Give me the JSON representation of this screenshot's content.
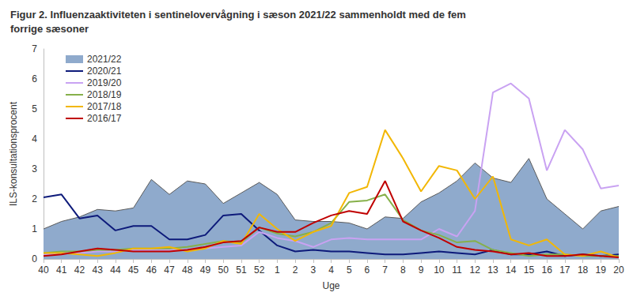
{
  "chart_data": {
    "type": "line",
    "title": "Figur 2. Influenzaaktiviteten i sentinelovervågning i sæson 2021/22 sammenholdt med de fem forrige sæsoner",
    "x_label": "Uge",
    "y_label": "ILS-konsultationsprocent",
    "categories": [
      "40",
      "41",
      "42",
      "43",
      "44",
      "45",
      "46",
      "47",
      "48",
      "49",
      "50",
      "51",
      "52",
      "1",
      "2",
      "3",
      "4",
      "5",
      "6",
      "7",
      "8",
      "9",
      "10",
      "11",
      "12",
      "13",
      "14",
      "15",
      "16",
      "17",
      "18",
      "19",
      "20"
    ],
    "ylim": [
      0,
      7
    ],
    "yticks": [
      0,
      1,
      2,
      3,
      4,
      5,
      6,
      7
    ],
    "grid": false,
    "legend": "top-left",
    "series": [
      {
        "name": "2021/22",
        "type": "area",
        "color": "#8faacc",
        "values": [
          1.0,
          1.25,
          1.4,
          1.65,
          1.6,
          1.7,
          2.65,
          2.15,
          2.6,
          2.5,
          1.85,
          2.2,
          2.55,
          2.15,
          1.3,
          1.25,
          1.25,
          1.2,
          1.0,
          1.4,
          1.35,
          1.9,
          2.2,
          2.6,
          3.2,
          2.7,
          2.55,
          3.35,
          2.0,
          1.5,
          1.0,
          1.6,
          1.75
        ]
      },
      {
        "name": "2020/21",
        "type": "line",
        "color": "#0d1a7a",
        "values": [
          2.05,
          2.15,
          1.35,
          1.45,
          0.95,
          1.1,
          1.1,
          0.65,
          0.65,
          0.8,
          1.45,
          1.5,
          0.95,
          0.45,
          0.25,
          0.3,
          0.25,
          0.25,
          0.2,
          0.15,
          0.15,
          0.2,
          0.25,
          0.2,
          0.15,
          0.3,
          0.15,
          0.15,
          0.25,
          0.1,
          0.15,
          0.1,
          0.15
        ]
      },
      {
        "name": "2019/20",
        "type": "line",
        "color": "#c9a2f2",
        "values": [
          0.15,
          0.2,
          0.2,
          0.25,
          0.25,
          0.3,
          0.3,
          0.3,
          0.3,
          0.35,
          0.4,
          0.45,
          0.9,
          0.7,
          0.6,
          0.4,
          0.65,
          0.7,
          0.65,
          0.65,
          0.65,
          0.65,
          1.0,
          0.75,
          1.6,
          5.55,
          5.85,
          5.35,
          2.95,
          4.3,
          3.65,
          2.35,
          2.45
        ]
      },
      {
        "name": "2018/19",
        "type": "line",
        "color": "#86b04a",
        "values": [
          0.2,
          0.25,
          0.25,
          0.3,
          0.3,
          0.35,
          0.35,
          0.35,
          0.4,
          0.5,
          0.6,
          0.55,
          1.05,
          0.85,
          0.75,
          0.9,
          1.2,
          1.9,
          1.95,
          2.15,
          1.3,
          0.95,
          0.8,
          0.55,
          0.6,
          0.3,
          0.2,
          0.1,
          0.15,
          0.15,
          0.1,
          0.1,
          0.1
        ]
      },
      {
        "name": "2017/18",
        "type": "line",
        "color": "#f2b705",
        "values": [
          0.2,
          0.2,
          0.15,
          0.1,
          0.2,
          0.35,
          0.35,
          0.4,
          0.25,
          0.35,
          0.6,
          0.5,
          1.5,
          1.0,
          0.6,
          0.9,
          1.1,
          2.2,
          2.4,
          4.3,
          3.35,
          2.25,
          3.1,
          2.95,
          2.0,
          2.75,
          0.65,
          0.45,
          0.65,
          0.15,
          0.1,
          0.25,
          0.05
        ]
      },
      {
        "name": "2016/17",
        "type": "line",
        "color": "#c00000",
        "values": [
          0.1,
          0.15,
          0.25,
          0.35,
          0.3,
          0.25,
          0.25,
          0.25,
          0.3,
          0.4,
          0.55,
          0.6,
          1.05,
          0.9,
          0.9,
          1.2,
          1.45,
          1.6,
          1.5,
          2.6,
          1.25,
          0.95,
          0.7,
          0.4,
          0.3,
          0.25,
          0.15,
          0.2,
          0.1,
          0.1,
          0.15,
          0.1,
          0.05
        ]
      }
    ]
  }
}
